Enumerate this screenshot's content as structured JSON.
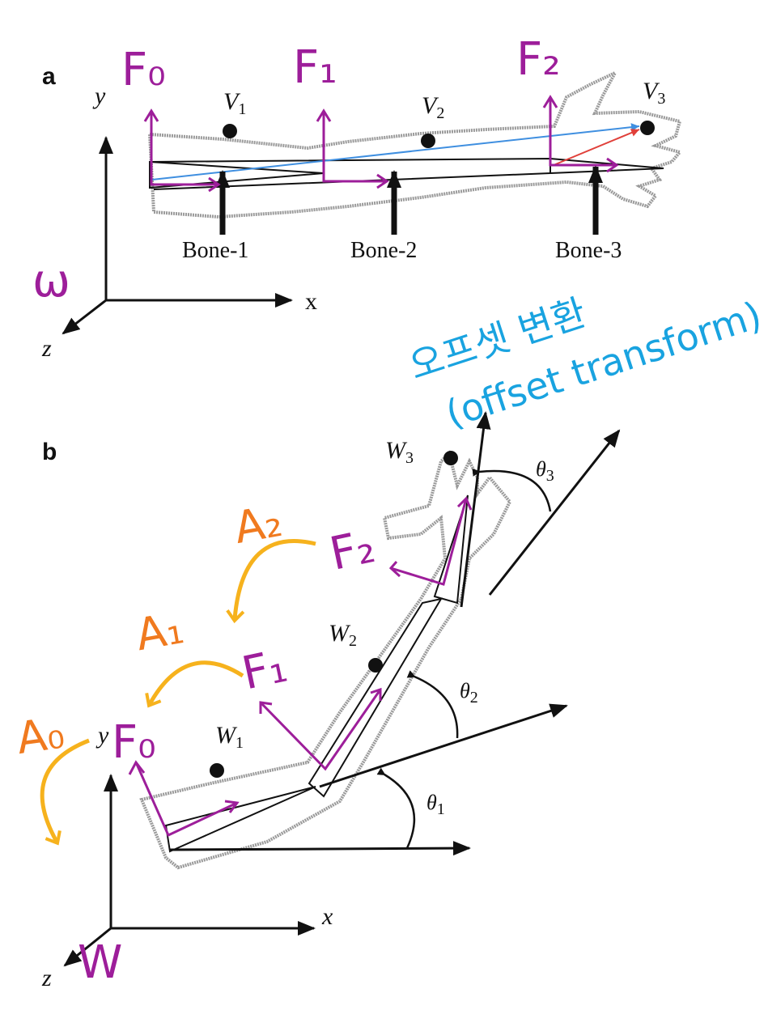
{
  "panel_a": {
    "label": "a",
    "axis_y": "y",
    "axis_x": "x",
    "axis_z": "z",
    "world": "ω",
    "vertex_1": "V",
    "vertex_1_sub": "1",
    "vertex_2": "V",
    "vertex_2_sub": "2",
    "vertex_3": "V",
    "vertex_3_sub": "3",
    "bone_1": "Bone-1",
    "bone_2": "Bone-2",
    "bone_3": "Bone-3",
    "frame_0": "F₀",
    "frame_1": "F₁",
    "frame_2": "F₂",
    "note_korean": "오프셋 변환",
    "note_english": "(offset transform)"
  },
  "panel_b": {
    "label": "b",
    "axis_y": "y",
    "axis_x": "x",
    "axis_z": "z",
    "world": "W",
    "point_1": "W",
    "point_1_sub": "1",
    "point_2": "W",
    "point_2_sub": "2",
    "point_3": "W",
    "point_3_sub": "3",
    "theta_1": "θ",
    "theta_1_sub": "1",
    "theta_2": "θ",
    "theta_2_sub": "2",
    "theta_3": "θ",
    "theta_3_sub": "3",
    "frame_0": "F₀",
    "frame_1": "F₁",
    "frame_2": "F₂",
    "anim_0": "A₀",
    "anim_1": "A₁",
    "anim_2": "A₂"
  },
  "colors": {
    "ink": "#111111",
    "frame_purple": "#9d1e9a",
    "anim_orange": "#f07a1f",
    "arc_yellow": "#f6b21d",
    "note_blue": "#19a3e0",
    "vec_blue": "#3f8fe0",
    "vec_red": "#e0403a",
    "outline_gray": "#9a9a9a"
  }
}
